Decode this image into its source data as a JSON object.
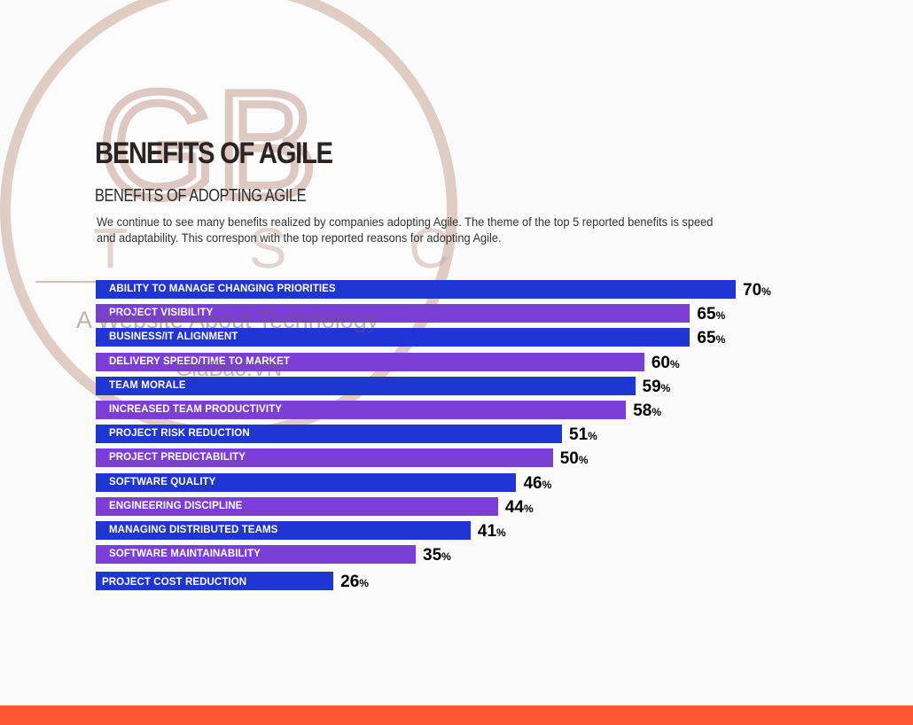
{
  "header": {
    "title": "BENEFITS OF AGILE",
    "subtitle": "BENEFITS OF ADOPTING AGILE",
    "description": "We continue to see many benefits realized by companies adopting Agile. The theme of the top 5 reported benefits is speed and adaptability. This correspon with the top reported reasons for adopting Agile."
  },
  "watermark": {
    "logo_letters": "GB",
    "logo_sub": "T S C",
    "tagline": "A Website About Technology",
    "site": "GiaBao.VN"
  },
  "colors": {
    "blue": "#1f35d4",
    "purple": "#7b3fd8",
    "footer": "#fd5733"
  },
  "chart_data": {
    "type": "bar",
    "orientation": "horizontal",
    "title": "BENEFITS OF ADOPTING AGILE",
    "xlabel": "",
    "ylabel": "",
    "unit": "%",
    "xlim": [
      0,
      70
    ],
    "grid": false,
    "legend": "none",
    "categories": [
      "ABILITY TO MANAGE CHANGING PRIORITIES",
      "PROJECT VISIBILITY",
      "BUSINESS/IT ALIGNMENT",
      "DELIVERY SPEED/TIME TO MARKET",
      "TEAM MORALE",
      "INCREASED TEAM PRODUCTIVITY",
      "PROJECT RISK REDUCTION",
      "PROJECT PREDICTABILITY",
      "SOFTWARE QUALITY",
      "ENGINEERING DISCIPLINE",
      "MANAGING DISTRIBUTED TEAMS",
      "SOFTWARE MAINTAINABILITY",
      "PROJECT COST REDUCTION"
    ],
    "values": [
      70,
      65,
      65,
      60,
      59,
      58,
      51,
      50,
      46,
      44,
      41,
      35,
      26
    ],
    "value_labels": [
      "70",
      "65",
      "65",
      "60",
      "59",
      "58",
      "51",
      "50",
      "46",
      "44",
      "41",
      "35",
      "26"
    ],
    "percent_sign": "%"
  }
}
